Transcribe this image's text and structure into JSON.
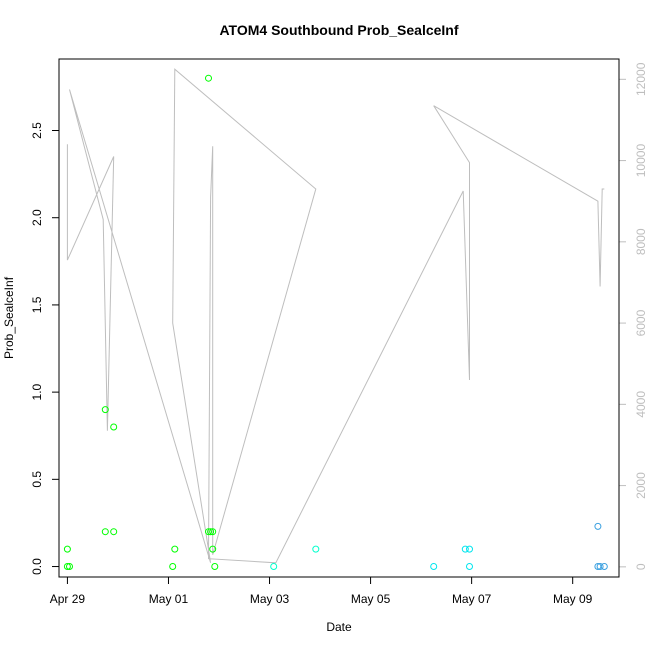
{
  "chart_data": {
    "type": "scatter",
    "title": "ATOM4 Southbound Prob_SealceInf",
    "xlabel": "Date",
    "ylabel": "Prob_SealceInf",
    "x_ticks": [
      {
        "label": "Apr 29",
        "date": "2024-04-29"
      },
      {
        "label": "May 01",
        "date": "2024-05-01"
      },
      {
        "label": "May 03",
        "date": "2024-05-03"
      },
      {
        "label": "May 05",
        "date": "2024-05-05"
      },
      {
        "label": "May 07",
        "date": "2024-05-07"
      },
      {
        "label": "May 09",
        "date": "2024-05-09"
      }
    ],
    "xlim": [
      "2024-04-28T20:00",
      "2024-05-09T22:00"
    ],
    "ylim": [
      -0.06,
      2.91
    ],
    "y_ticks": [
      "0.0",
      "0.5",
      "1.0",
      "1.5",
      "2.0",
      "2.5"
    ],
    "secondary_axis": {
      "side": "right",
      "ylim": [
        -250,
        12500
      ],
      "ticks": [
        "0",
        "2000",
        "4000",
        "6000",
        "8000",
        "10000",
        "12000"
      ],
      "color": "#bebebe"
    },
    "series": [
      {
        "kind": "points",
        "color": "#00ff00",
        "points": [
          {
            "x": "2024-04-29T00:00",
            "y": 0.1
          },
          {
            "x": "2024-04-29T00:00",
            "y": 0.0
          },
          {
            "x": "2024-04-29T01:00",
            "y": 0.0
          },
          {
            "x": "2024-04-29T18:00",
            "y": 0.9
          },
          {
            "x": "2024-04-29T18:00",
            "y": 0.2
          },
          {
            "x": "2024-04-29T22:00",
            "y": 0.2
          },
          {
            "x": "2024-04-29T22:00",
            "y": 0.8
          },
          {
            "x": "2024-05-01T02:00",
            "y": 0.0
          },
          {
            "x": "2024-05-01T03:00",
            "y": 0.1
          },
          {
            "x": "2024-05-01T19:00",
            "y": 2.8
          },
          {
            "x": "2024-05-01T19:00",
            "y": 0.2
          },
          {
            "x": "2024-05-01T20:00",
            "y": 0.2
          },
          {
            "x": "2024-05-01T21:00",
            "y": 0.2
          },
          {
            "x": "2024-05-01T21:00",
            "y": 0.1
          },
          {
            "x": "2024-05-01T22:00",
            "y": 0.0
          }
        ]
      },
      {
        "kind": "points",
        "color": "#00ffcc",
        "points": [
          {
            "x": "2024-05-03T02:00",
            "y": 0.0
          },
          {
            "x": "2024-05-03T22:00",
            "y": 0.1
          }
        ]
      },
      {
        "kind": "points",
        "color": "#00e5ee",
        "points": [
          {
            "x": "2024-05-06T06:00",
            "y": 0.0
          },
          {
            "x": "2024-05-06T21:00",
            "y": 0.1
          },
          {
            "x": "2024-05-06T23:00",
            "y": 0.1
          },
          {
            "x": "2024-05-06T23:00",
            "y": 0.0
          }
        ]
      },
      {
        "kind": "points",
        "color": "#3aa0e0",
        "points": [
          {
            "x": "2024-05-09T12:00",
            "y": 0.23
          },
          {
            "x": "2024-05-09T12:00",
            "y": 0.0
          },
          {
            "x": "2024-05-09T13:00",
            "y": 0.0
          },
          {
            "x": "2024-05-09T15:00",
            "y": 0.0
          }
        ]
      },
      {
        "kind": "line",
        "axis": "right",
        "color": "#bebebe",
        "points": [
          {
            "x": "2024-04-29T00:00",
            "y": 10400
          },
          {
            "x": "2024-04-29T00:00",
            "y": 7550
          },
          {
            "x": "2024-04-29T22:00",
            "y": 10100
          },
          {
            "x": "2024-04-29T19:00",
            "y": 3350
          },
          {
            "x": "2024-04-29T17:00",
            "y": 8550
          },
          {
            "x": "2024-04-29T01:00",
            "y": 11750
          },
          {
            "x": "2024-05-01T20:00",
            "y": 100
          },
          {
            "x": "2024-05-01T02:00",
            "y": 6000
          },
          {
            "x": "2024-05-01T03:00",
            "y": 12250
          },
          {
            "x": "2024-05-03T22:00",
            "y": 9300
          },
          {
            "x": "2024-05-01T21:00",
            "y": 300
          },
          {
            "x": "2024-05-01T21:00",
            "y": 10350
          },
          {
            "x": "2024-05-01T20:00",
            "y": 9100
          },
          {
            "x": "2024-05-01T19:00",
            "y": 200
          },
          {
            "x": "2024-05-03T03:00",
            "y": 100
          },
          {
            "x": "2024-05-06T20:00",
            "y": 9250
          },
          {
            "x": "2024-05-06T23:00",
            "y": 4600
          },
          {
            "x": "2024-05-06T23:00",
            "y": 9950
          },
          {
            "x": "2024-05-06T06:00",
            "y": 11350
          },
          {
            "x": "2024-05-09T12:00",
            "y": 9000
          },
          {
            "x": "2024-05-09T13:00",
            "y": 6900
          },
          {
            "x": "2024-05-09T14:00",
            "y": 9300
          },
          {
            "x": "2024-05-09T15:00",
            "y": 9300
          }
        ]
      }
    ]
  }
}
